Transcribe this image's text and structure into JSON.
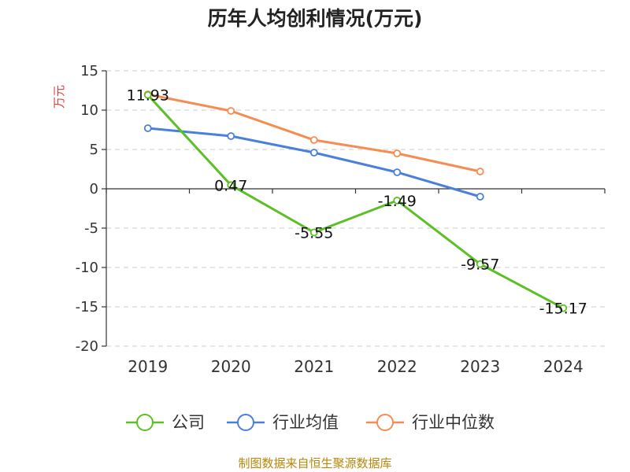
{
  "chart_data": {
    "type": "line",
    "title": "历年人均创利情况(万元)",
    "ylabel": "万元",
    "categories": [
      "2019",
      "2020",
      "2021",
      "2022",
      "2023",
      "2024"
    ],
    "ylim": [
      -20,
      15
    ],
    "yticks": [
      15,
      10,
      5,
      0,
      -5,
      -10,
      -15,
      -20
    ],
    "grid": true,
    "legend_position": "bottom",
    "series": [
      {
        "name": "公司",
        "color": "#5cc024",
        "values": [
          11.93,
          0.47,
          -5.55,
          -1.49,
          -9.57,
          -15.17
        ],
        "labels": [
          "11.93",
          "0.47",
          "-5.55",
          "-1.49",
          "-9.57",
          "-15.17"
        ]
      },
      {
        "name": "行业均值",
        "color": "#4a7fdc",
        "values": [
          7.7,
          6.7,
          4.6,
          2.1,
          -1.0,
          null
        ]
      },
      {
        "name": "行业中位数",
        "color": "#f58c52",
        "values": [
          12.0,
          9.9,
          6.2,
          4.5,
          2.2,
          null
        ]
      }
    ]
  },
  "source": "制图数据来自恒生聚源数据库"
}
